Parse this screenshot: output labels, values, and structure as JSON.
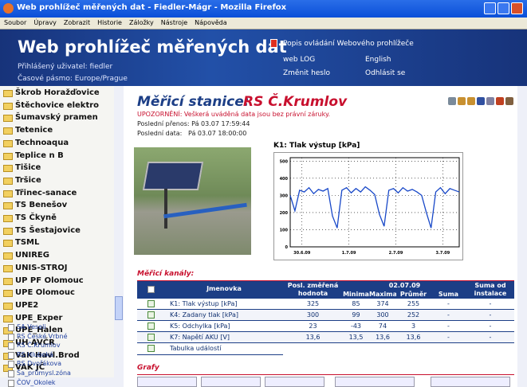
{
  "window": {
    "title": "Web prohlížeč měřených dat - Fiedler-Mágr - Mozilla Firefox",
    "menu": [
      "Soubor",
      "Úpravy",
      "Zobrazit",
      "Historie",
      "Záložky",
      "Nástroje",
      "Nápověda"
    ]
  },
  "header": {
    "title": "Web prohlížeč měřených dat",
    "user": "Přihlášený uživatel: fiedler",
    "timezone": "Časové pásmo: Europe/Prague",
    "links": [
      "Popis ovládání Webového prohlížeče",
      "web LOG",
      "English",
      "Změnit heslo",
      "Odhlásit se"
    ]
  },
  "sidebar": {
    "items": [
      "Škrob Horažďovice",
      "Štěchovice elektro",
      "Šumavský pramen",
      "Tetenice",
      "Technoaqua",
      "Teplice n B",
      "Tišice",
      "Tršice",
      "Třinec-sanace",
      "TS Benešov",
      "TS Čkyně",
      "TS Šestajovice",
      "TSML",
      "UNIREG",
      "UNIS-STROJ",
      "UP PF Olomouc",
      "UPE Olomouc",
      "UPE2",
      "UPE_Exper",
      "UPE_Halen",
      "ÚH AVČR",
      "VaK Havl.Brod",
      "VAK JČ"
    ],
    "subitems": [
      "SA Veseli",
      "RS České Vrbné",
      "RS Č.Krumlov",
      "RS Hluboká",
      "RS Dvořákova",
      "Ša_průmysl.zóna",
      "ČOV_Okolek"
    ]
  },
  "station": {
    "label": "Měřicí stanice:",
    "name": "RS Č.Krumlov",
    "warning": "UPOZORNĚNÍ: Veškerá uváděná data jsou bez právní záruky.",
    "last_transfer": "Poslední přenos: Pá 03.07 17:59:44",
    "last_data": "Poslední data:   Pá 03.07 18:00:00"
  },
  "chart_data": {
    "type": "line",
    "title": "K1: Tlak výstup [kPa]",
    "x": [
      0,
      0.1,
      0.2,
      0.3,
      0.4,
      0.5,
      0.6,
      0.7,
      0.8,
      0.9,
      1.0,
      1.1,
      1.2,
      1.3,
      1.4,
      1.5,
      1.6,
      1.7,
      1.8,
      1.9,
      2.0,
      2.1,
      2.2,
      2.3,
      2.4,
      2.5,
      2.6,
      2.7,
      2.8,
      2.9,
      3.0,
      3.1,
      3.2,
      3.3,
      3.4,
      3.5,
      3.6
    ],
    "series": [
      {
        "name": "K1: Tlak výstup [kPa]",
        "color": "#1848c8",
        "values": [
          300,
          210,
          330,
          320,
          345,
          310,
          335,
          325,
          340,
          180,
          110,
          330,
          345,
          315,
          340,
          320,
          350,
          330,
          305,
          190,
          120,
          330,
          340,
          315,
          345,
          325,
          335,
          320,
          300,
          200,
          110,
          320,
          345,
          310,
          340,
          330,
          320
        ]
      }
    ],
    "xlim": [
      0,
      3.6
    ],
    "xticks": [
      {
        "value": 0.25,
        "label": "30.6.09"
      },
      {
        "value": 1.25,
        "label": "1.7.09"
      },
      {
        "value": 2.25,
        "label": "2.7.09"
      },
      {
        "value": 3.25,
        "label": "3.7.09"
      }
    ],
    "ylim": [
      0,
      520
    ],
    "yticks": [
      0,
      100,
      200,
      300,
      400,
      500
    ],
    "grid": true
  },
  "channels": {
    "title": "Měřicí kanály:",
    "header": [
      "Jmenovka",
      "Posl. změřená hodnota",
      "02.07.09",
      "Minima",
      "Maxima",
      "Průměr",
      "Suma",
      "Suma od instalace"
    ],
    "rows": [
      [
        "K1: Tlak výstup [kPa]",
        "325",
        "85",
        "374",
        "255",
        "-",
        "-"
      ],
      [
        "K4: Zadany tlak [kPa]",
        "300",
        "99",
        "300",
        "252",
        "-",
        "-"
      ],
      [
        "K5: Odchylka [kPa]",
        "23",
        "-43",
        "74",
        "3",
        "-",
        "-"
      ],
      [
        "K7: Napětí AKU [V]",
        "13,6",
        "13,5",
        "13,6",
        "13,6",
        "-",
        "-"
      ]
    ],
    "events": "Tabulka událostí"
  },
  "graphs": {
    "title": "Grafy"
  }
}
